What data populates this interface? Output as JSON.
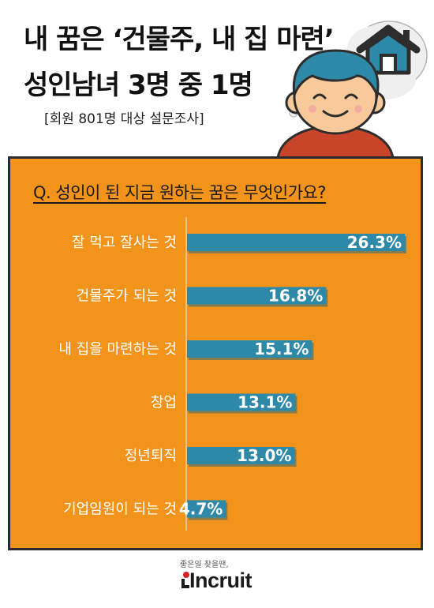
{
  "header": {
    "title_line1": "내 꿈은 ‘건물주, 내 집 마련’",
    "title_line2": "성인남녀 3명 중 1명",
    "subtitle": "[회원 801명 대상 설문조사]"
  },
  "question": "Q. 성인이 된 지금 원하는 꿈은 무엇인가요?",
  "chart_data": {
    "type": "bar",
    "orientation": "horizontal",
    "title": "Q. 성인이 된 지금 원하는 꿈은 무엇인가요?",
    "xlabel": "",
    "ylabel": "",
    "categories": [
      "잘 먹고 잘사는 것",
      "건물주가 되는 것",
      "내 집을 마련하는 것",
      "창업",
      "정년퇴직",
      "기업임원이 되는 것"
    ],
    "values": [
      26.3,
      16.8,
      15.1,
      13.1,
      13.0,
      4.7
    ],
    "value_labels": [
      "26.3%",
      "16.8%",
      "15.1%",
      "13.1%",
      "13.0%",
      "4.7%"
    ],
    "xlim": [
      0,
      26.3
    ],
    "grid": false,
    "legend": "none"
  },
  "footer": {
    "tagline": "좋은일 찾을땐,",
    "brand": "Incruit"
  },
  "colors": {
    "panel": "#f2941b",
    "bar": "#2e89a8",
    "bar_shadow": "#1f5f78",
    "bar_text": "#ffffff",
    "accent_red": "#d81f26"
  },
  "icons": [
    "house-icon",
    "thought-bubble",
    "smiling-person"
  ]
}
